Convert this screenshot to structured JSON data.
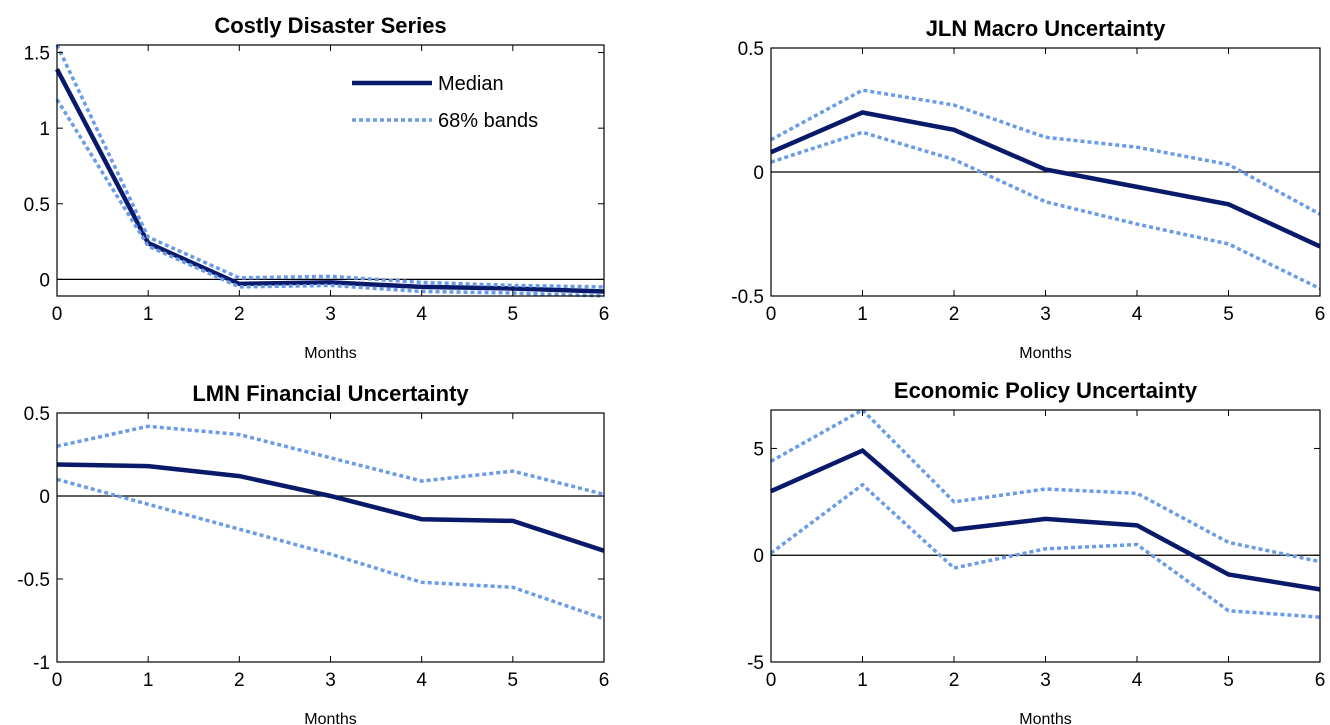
{
  "legend": {
    "median": "Median",
    "bands": "68% bands"
  },
  "colors": {
    "median": "#0a1a6b",
    "bands": "#6a9be8",
    "zero": "#000000"
  },
  "chart_data": [
    {
      "type": "line",
      "title": "Costly Disaster Series",
      "xlabel": "Months",
      "ylabel": "",
      "x": [
        0,
        1,
        2,
        3,
        4,
        5,
        6
      ],
      "xlim": [
        0,
        6
      ],
      "ylim": [
        -0.11,
        1.55
      ],
      "yticks": [
        0,
        0.5,
        1,
        1.5
      ],
      "yticklabels": [
        "0",
        "0.5",
        "1",
        "1.5"
      ],
      "legend_position": "top-right",
      "series": [
        {
          "name": "Median",
          "values": [
            1.39,
            0.24,
            -0.03,
            -0.02,
            -0.05,
            -0.06,
            -0.08
          ]
        },
        {
          "name": "68% bands",
          "values": [
            1.55,
            0.28,
            0.01,
            0.02,
            -0.02,
            -0.04,
            -0.05
          ]
        },
        {
          "name": "68% bands",
          "values": [
            1.19,
            0.22,
            -0.05,
            -0.04,
            -0.08,
            -0.09,
            -0.11
          ]
        }
      ]
    },
    {
      "type": "line",
      "title": "JLN Macro Uncertainty",
      "xlabel": "Months",
      "ylabel": "",
      "x": [
        0,
        1,
        2,
        3,
        4,
        5,
        6
      ],
      "xlim": [
        0,
        6
      ],
      "ylim": [
        -0.5,
        0.5
      ],
      "yticks": [
        -0.5,
        0,
        0.5
      ],
      "yticklabels": [
        "-0.5",
        "0",
        "0.5"
      ],
      "series": [
        {
          "name": "Median",
          "values": [
            0.08,
            0.24,
            0.17,
            0.01,
            -0.06,
            -0.13,
            -0.3
          ]
        },
        {
          "name": "68% bands",
          "values": [
            0.13,
            0.33,
            0.27,
            0.14,
            0.1,
            0.03,
            -0.17
          ]
        },
        {
          "name": "68% bands",
          "values": [
            0.04,
            0.16,
            0.05,
            -0.12,
            -0.21,
            -0.29,
            -0.47
          ]
        }
      ]
    },
    {
      "type": "line",
      "title": "LMN Financial Uncertainty",
      "xlabel": "Months",
      "ylabel": "",
      "x": [
        0,
        1,
        2,
        3,
        4,
        5,
        6
      ],
      "xlim": [
        0,
        6
      ],
      "ylim": [
        -1,
        0.5
      ],
      "yticks": [
        -1,
        -0.5,
        0,
        0.5
      ],
      "yticklabels": [
        "-1",
        "-0.5",
        "0",
        "0.5"
      ],
      "series": [
        {
          "name": "Median",
          "values": [
            0.19,
            0.18,
            0.12,
            0.0,
            -0.14,
            -0.15,
            -0.33
          ]
        },
        {
          "name": "68% bands",
          "values": [
            0.3,
            0.42,
            0.37,
            0.23,
            0.09,
            0.15,
            0.01
          ]
        },
        {
          "name": "68% bands",
          "values": [
            0.1,
            -0.05,
            -0.2,
            -0.35,
            -0.52,
            -0.55,
            -0.74
          ]
        }
      ]
    },
    {
      "type": "line",
      "title": "Economic Policy Uncertainty",
      "xlabel": "Months",
      "ylabel": "",
      "x": [
        0,
        1,
        2,
        3,
        4,
        5,
        6
      ],
      "xlim": [
        0,
        6
      ],
      "ylim": [
        -5,
        6.8
      ],
      "yticks": [
        -5,
        0,
        5
      ],
      "yticklabels": [
        "-5",
        "0",
        "5"
      ],
      "series": [
        {
          "name": "Median",
          "values": [
            3.0,
            4.9,
            1.2,
            1.7,
            1.4,
            -0.9,
            -1.6
          ]
        },
        {
          "name": "68% bands",
          "values": [
            4.4,
            6.8,
            2.5,
            3.1,
            2.9,
            0.6,
            -0.3
          ]
        },
        {
          "name": "68% bands",
          "values": [
            0.1,
            3.3,
            -0.6,
            0.3,
            0.5,
            -2.6,
            -2.9
          ]
        }
      ]
    }
  ]
}
